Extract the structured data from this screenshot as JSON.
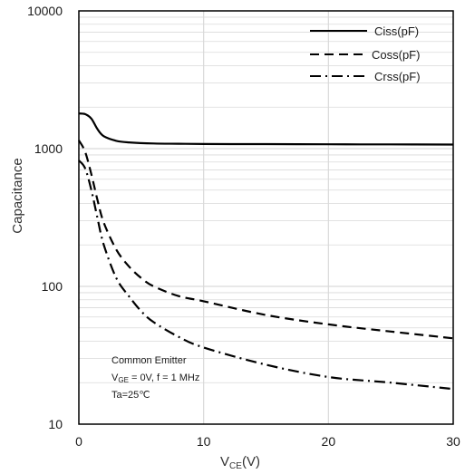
{
  "chart_data": {
    "type": "line",
    "xlabel_main": "V",
    "xlabel_sub": "CE",
    "xlabel_tail": "(V)",
    "ylabel": "Capacitance",
    "xlim": [
      0,
      30
    ],
    "ylim": [
      10,
      10000
    ],
    "y_scale": "log",
    "x_ticks": [
      "0",
      "10",
      "20",
      "30"
    ],
    "y_ticks": [
      "10",
      "100",
      "1000",
      "10000"
    ],
    "grid": true,
    "legend_position": "top-right",
    "series": [
      {
        "name": "Ciss(pF)",
        "style": "solid",
        "x": [
          0,
          0.5,
          1.0,
          1.5,
          2,
          3,
          4,
          6,
          8,
          10,
          15,
          20,
          25,
          30
        ],
        "y": [
          1800,
          1780,
          1650,
          1380,
          1230,
          1140,
          1110,
          1090,
          1085,
          1080,
          1078,
          1075,
          1073,
          1070
        ]
      },
      {
        "name": "Coss(pF)",
        "style": "dashed",
        "x": [
          0,
          0.5,
          1,
          1.5,
          2,
          3,
          4,
          5,
          6,
          8,
          10,
          15,
          20,
          25,
          30
        ],
        "y": [
          1150,
          950,
          650,
          420,
          290,
          185,
          140,
          115,
          100,
          85,
          78,
          62,
          53,
          47,
          42
        ]
      },
      {
        "name": "Crss(pF)",
        "style": "dashdot",
        "x": [
          0,
          0.5,
          1,
          1.5,
          2,
          3,
          4,
          5,
          6,
          8,
          10,
          15,
          20,
          25,
          30
        ],
        "y": [
          820,
          720,
          500,
          310,
          200,
          115,
          85,
          66,
          55,
          43,
          36,
          27,
          22,
          20,
          18
        ]
      }
    ],
    "annotation": {
      "line1": "Common Emitter",
      "line2_a": "V",
      "line2_sub": "GE",
      "line2_b": " = 0V, f = 1 MHz",
      "line3": "Ta=25℃"
    }
  },
  "colors": {
    "line": "#000000",
    "grid": "#d9d9d9",
    "axis": "#000000"
  }
}
